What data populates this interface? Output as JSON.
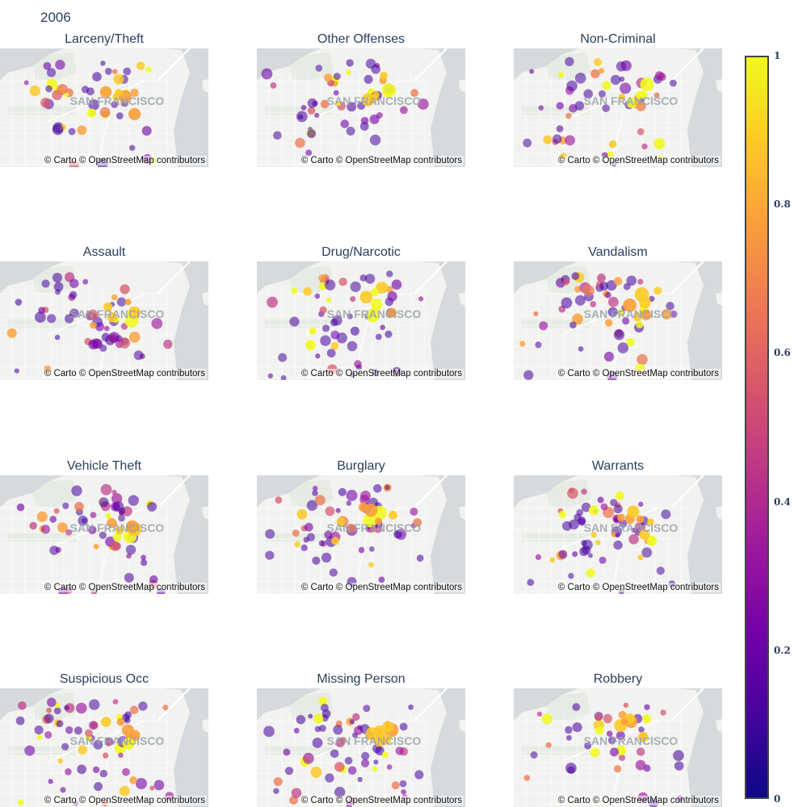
{
  "title": "2006",
  "attribution": "© Carto © OpenStreetMap contributors",
  "city_label": "SAN FRANCISCO",
  "colorscale": {
    "name": "plasma",
    "stops": [
      "#0d0887",
      "#46039f",
      "#7201a8",
      "#9c179e",
      "#bd3786",
      "#d8576b",
      "#ed7953",
      "#fb9f3a",
      "#fdca26",
      "#f0f921"
    ],
    "ticks": [
      "0",
      "0.2",
      "0.4",
      "0.6",
      "0.8",
      "1"
    ]
  },
  "map_colors": {
    "land": "#f2f2f0",
    "water": "#d6dadd",
    "park": "#e6ebe4",
    "road": "#ffffff"
  },
  "panels": [
    {
      "title": "Larceny/Theft"
    },
    {
      "title": "Other Offenses"
    },
    {
      "title": "Non-Criminal"
    },
    {
      "title": "Assault"
    },
    {
      "title": "Drug/Narcotic"
    },
    {
      "title": "Vandalism"
    },
    {
      "title": "Vehicle Theft"
    },
    {
      "title": "Burglary"
    },
    {
      "title": "Warrants"
    },
    {
      "title": "Suspicious Occ"
    },
    {
      "title": "Missing Person"
    },
    {
      "title": "Robbery"
    }
  ]
}
